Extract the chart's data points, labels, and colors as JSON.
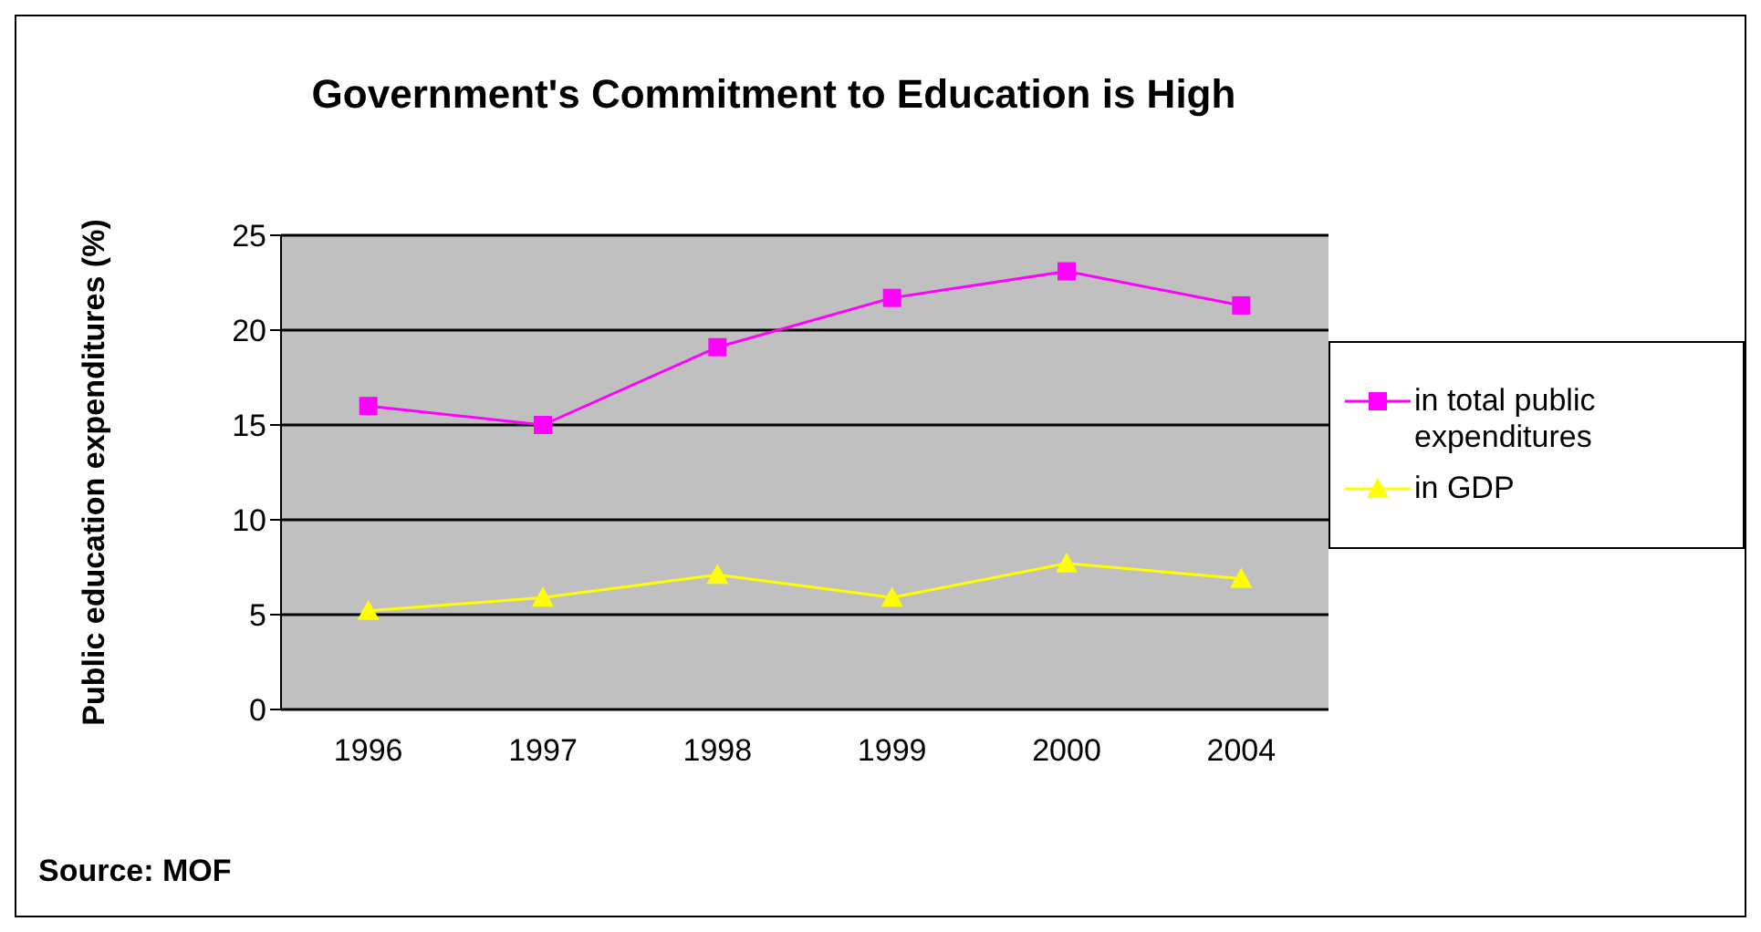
{
  "chart_data": {
    "type": "line",
    "title": "Government's Commitment to Education is High",
    "ylabel": "Public education expenditures (%)",
    "annotations": [
      "Source: MOF"
    ],
    "categories": [
      "1996",
      "1997",
      "1998",
      "1999",
      "2000",
      "2004"
    ],
    "series": [
      {
        "name": "in total public expenditures",
        "color": "#ff00ff",
        "marker": "square",
        "values": [
          16,
          15,
          19.1,
          21.7,
          23.1,
          21.3
        ]
      },
      {
        "name": "in GDP",
        "color": "#ffff00",
        "marker": "triangle",
        "values": [
          5.2,
          5.9,
          7.1,
          5.9,
          7.7,
          6.9
        ]
      }
    ],
    "ylim": [
      0,
      25
    ],
    "yticks": [
      0,
      5,
      10,
      15,
      20,
      25
    ],
    "grid": "y",
    "legend": "right"
  }
}
